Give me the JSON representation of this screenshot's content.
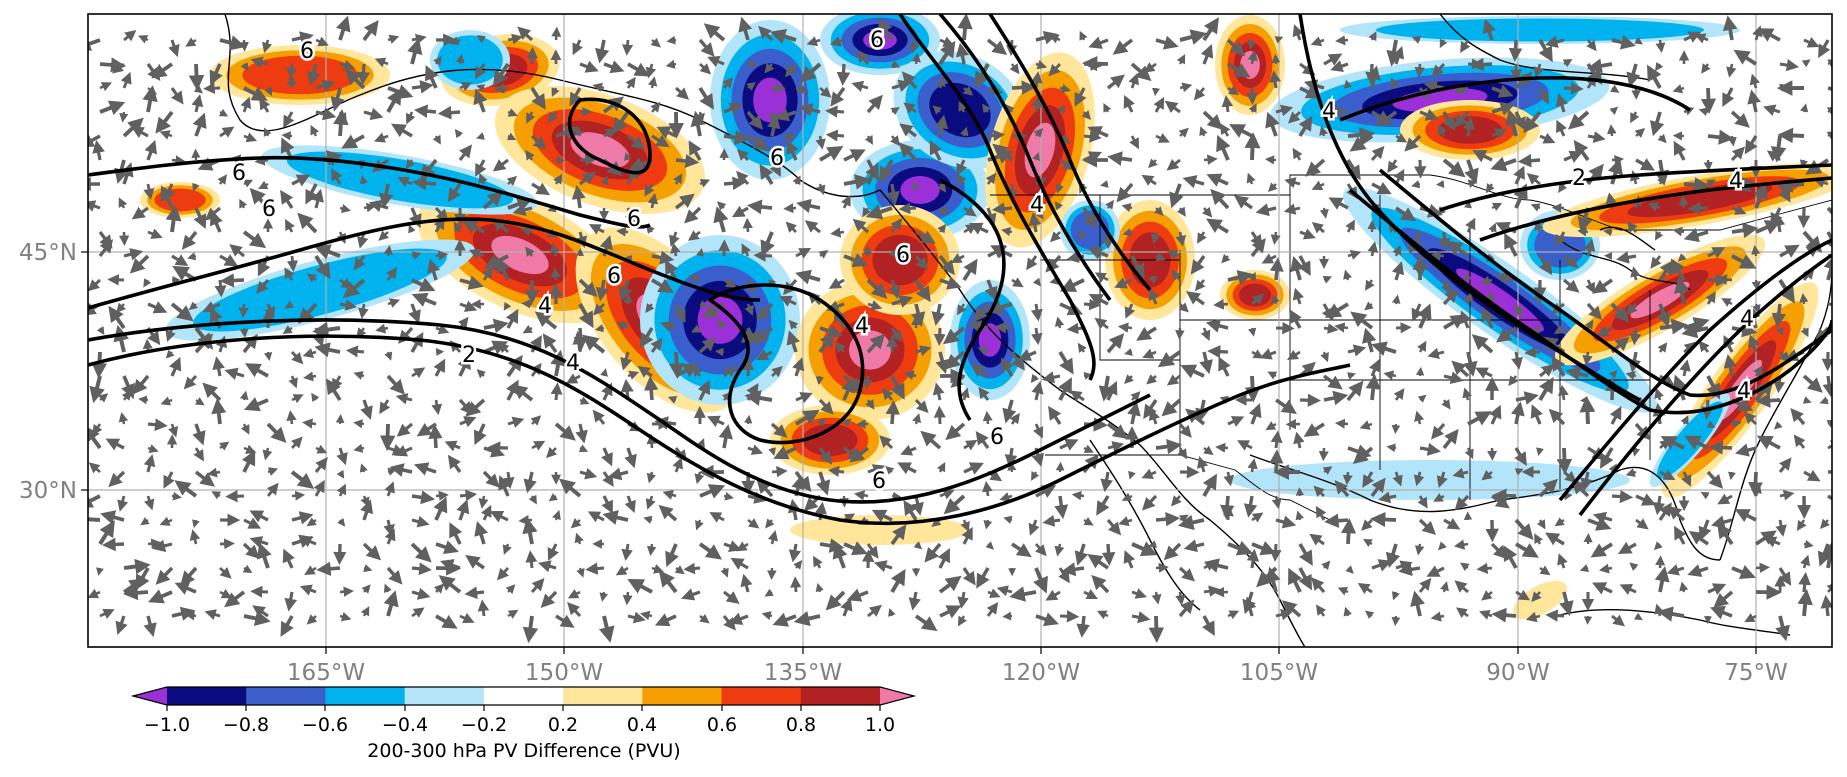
{
  "map": {
    "lon_labels": [
      "165°W",
      "150°W",
      "135°W",
      "120°W",
      "105°W",
      "90°W",
      "75°W"
    ],
    "lat_labels": [
      "45°N",
      "30°N"
    ],
    "contour_labels": [
      "6",
      "6",
      "6",
      "6",
      "6",
      "4",
      "6",
      "6",
      "6",
      "4",
      "2",
      "4",
      "6",
      "4",
      "4",
      "2",
      "6",
      "4",
      "4",
      "4"
    ]
  },
  "colorbar": {
    "ticks": [
      "−1.0",
      "−0.8",
      "−0.6",
      "−0.4",
      "−0.2",
      "0.2",
      "0.4",
      "0.6",
      "0.8",
      "1.0"
    ],
    "label": "200-300 hPa PV Difference (PVU)",
    "colors": [
      "#9b30d9",
      "#0b0b80",
      "#3a5fcd",
      "#00b2ee",
      "#b2e5fa",
      "#ffffff",
      "#ffe69a",
      "#f5a000",
      "#ee3b10",
      "#b22222",
      "#ef7aa8"
    ]
  },
  "colors": {
    "neg_strong": "#9b30d9",
    "neg_dark": "#0b0b80",
    "neg_mid": "#3a5fcd",
    "neg_light": "#00b2ee",
    "neg_pale": "#b2e5fa",
    "pos_pale": "#ffe69a",
    "pos_orange": "#f5a000",
    "pos_red": "#ee3b10",
    "pos_dark": "#b22222",
    "pos_strong": "#ef7aa8",
    "arrows": "#606060",
    "grid": "#b0b0b0",
    "ticks": "#808080"
  }
}
